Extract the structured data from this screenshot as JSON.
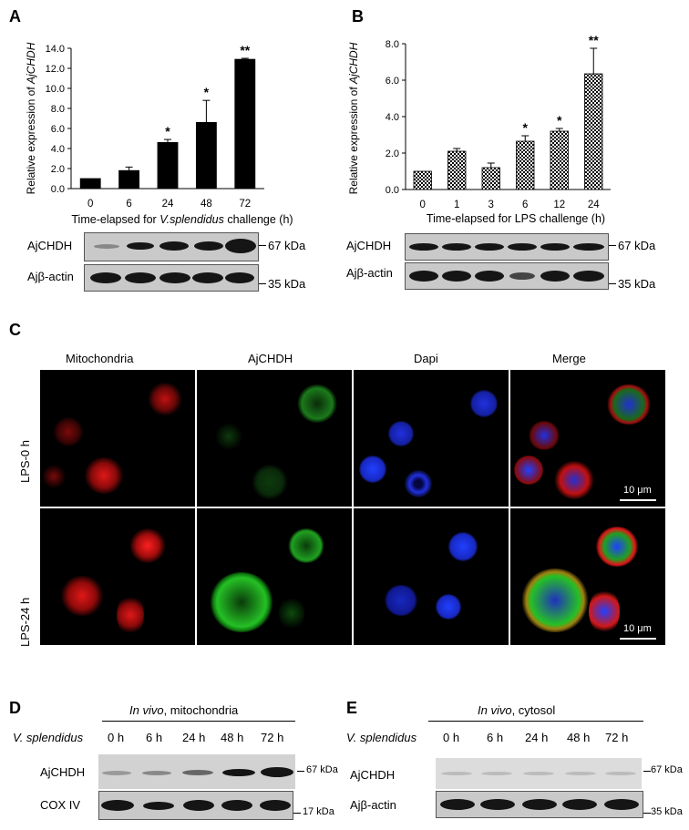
{
  "panels": {
    "A": {
      "letter": "A"
    },
    "B": {
      "letter": "B"
    },
    "C": {
      "letter": "C"
    },
    "D": {
      "letter": "D"
    },
    "E": {
      "letter": "E"
    }
  },
  "chart_data": [
    {
      "type": "bar",
      "panel": "A",
      "categories": [
        "0",
        "6",
        "24",
        "48",
        "72"
      ],
      "values": [
        1.0,
        1.8,
        4.6,
        6.6,
        12.9
      ],
      "errors": [
        0.0,
        0.35,
        0.3,
        2.2,
        0.1
      ],
      "significance": [
        "",
        "",
        "*",
        "*",
        "**"
      ],
      "ylabel_prefix": "Relative expression of ",
      "ylabel_gene": "AjCHDH",
      "xlabel_prefix": "Time-elapsed for ",
      "xlabel_species": "V.splendidus",
      "xlabel_suffix": " challenge (h)",
      "ylim": [
        0,
        14
      ],
      "yticks": [
        "0.0",
        "2.0",
        "4.0",
        "6.0",
        "8.0",
        "10.0",
        "12.0",
        "14.0"
      ],
      "fill": "#000000"
    },
    {
      "type": "bar",
      "panel": "B",
      "categories": [
        "0",
        "1",
        "3",
        "6",
        "12",
        "24"
      ],
      "values": [
        1.0,
        2.1,
        1.2,
        2.65,
        3.2,
        6.35
      ],
      "errors": [
        0.0,
        0.15,
        0.25,
        0.3,
        0.15,
        1.4
      ],
      "significance": [
        "",
        "",
        "",
        "*",
        "*",
        "**"
      ],
      "ylabel_prefix": "Relative expression of ",
      "ylabel_gene": "AjCHDH",
      "xlabel": "Time-elapsed for LPS challenge (h)",
      "ylim": [
        0,
        8
      ],
      "yticks": [
        "0.0",
        "2.0",
        "4.0",
        "6.0",
        "8.0"
      ],
      "fill": "checkered"
    }
  ],
  "blots": {
    "A": {
      "row1_label": "AjCHDH",
      "row1_marker": "67 kDa",
      "row2_label": "Ajβ-actin",
      "row2_marker": "35 kDa"
    },
    "B": {
      "row1_label": "AjCHDH",
      "row1_marker": "67 kDa",
      "row2_label": "Ajβ-actin",
      "row2_marker": "35 kDa"
    },
    "D": {
      "header_italic": "In vivo",
      "header_rest": ", mitochondria",
      "species": "V. splendidus",
      "times": [
        "0 h",
        "6 h",
        "24 h",
        "48 h",
        "72 h"
      ],
      "row1_label": "AjCHDH",
      "row1_marker": "67 kDa",
      "row2_label": "COX IV",
      "row2_marker": "17 kDa"
    },
    "E": {
      "header_italic": "In vivo",
      "header_rest": ", cytosol",
      "species": "V. splendidus",
      "times": [
        "0 h",
        "6 h",
        "24 h",
        "48 h",
        "72 h"
      ],
      "row1_label": "AjCHDH",
      "row1_marker": "67 kDa",
      "row2_label": "Ajβ-actin",
      "row2_marker": "35 kDa"
    }
  },
  "microscopy": {
    "columns": [
      "Mitochondria",
      "AjCHDH",
      "Dapi",
      "Merge"
    ],
    "rows": [
      "LPS-0 h",
      "LPS-24 h"
    ],
    "scale_label": "10 μm"
  }
}
